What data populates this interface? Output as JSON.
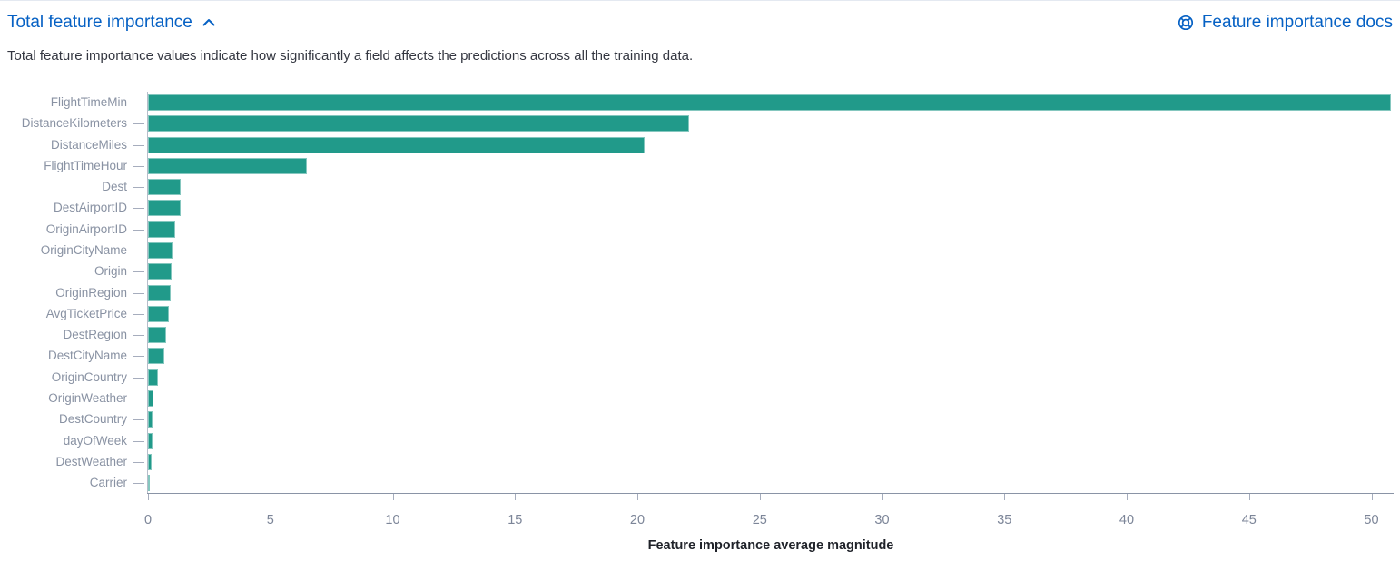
{
  "header": {
    "title": "Total feature importance",
    "collapse_icon": "chevron-up-icon",
    "docs_link_label": "Feature importance docs",
    "docs_icon": "lifebuoy-icon",
    "link_color": "#0661c4"
  },
  "description": "Total feature importance values indicate how significantly a field affects the predictions across all the training data.",
  "chart_data": {
    "type": "bar",
    "orientation": "horizontal",
    "title": "Total feature importance",
    "xlabel": "Feature importance average magnitude",
    "ylabel": "",
    "xlim": [
      0,
      50.8
    ],
    "x_ticks": [
      0,
      5,
      10,
      15,
      20,
      25,
      30,
      35,
      40,
      45,
      50
    ],
    "grid": false,
    "legend": false,
    "bar_color": "#219a8a",
    "categories": [
      "FlightTimeMin",
      "DistanceKilometers",
      "DistanceMiles",
      "FlightTimeHour",
      "Dest",
      "DestAirportID",
      "OriginAirportID",
      "OriginCityName",
      "Origin",
      "OriginRegion",
      "AvgTicketPrice",
      "DestRegion",
      "DestCityName",
      "OriginCountry",
      "OriginWeather",
      "DestCountry",
      "dayOfWeek",
      "DestWeather",
      "Carrier"
    ],
    "values": [
      50.8,
      22.1,
      20.3,
      6.5,
      1.34,
      1.32,
      1.11,
      1.0,
      0.98,
      0.91,
      0.87,
      0.74,
      0.65,
      0.41,
      0.22,
      0.2,
      0.18,
      0.13,
      0.07
    ]
  }
}
